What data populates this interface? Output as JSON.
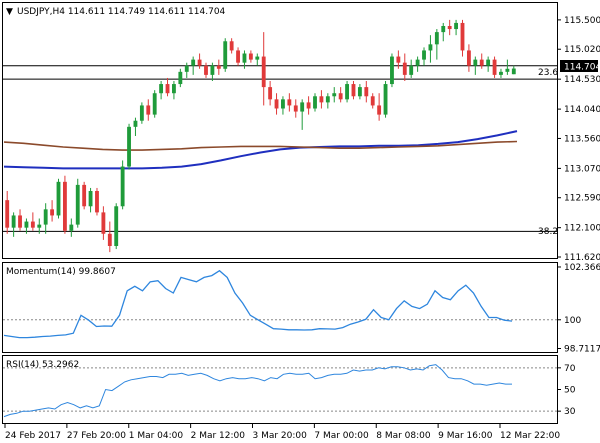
{
  "chart_data": [
    {
      "type": "candlestick",
      "title": "USDJPY,H4  114.611 114.749 114.611 114.704",
      "symbol": "USDJPY",
      "timeframe": "H4",
      "last_bar": {
        "open": 114.611,
        "high": 114.749,
        "low": 114.611,
        "close": 114.704
      },
      "current_price": 114.704,
      "y_ticks": [
        "115.500",
        "115.020",
        "114.530",
        "114.040",
        "113.560",
        "113.070",
        "112.590",
        "112.100",
        "111.620"
      ],
      "ylim": [
        111.62,
        115.76
      ],
      "up_color": "#1f9b3a",
      "down_color": "#e03a3a",
      "candles": [
        [
          112.55,
          112.7,
          112.0,
          112.1
        ],
        [
          112.1,
          112.35,
          111.95,
          112.3
        ],
        [
          112.3,
          112.4,
          112.05,
          112.1
        ],
        [
          112.1,
          112.25,
          112.0,
          112.2
        ],
        [
          112.2,
          112.35,
          112.05,
          112.1
        ],
        [
          112.1,
          112.25,
          112.0,
          112.15
        ],
        [
          112.15,
          112.5,
          112.0,
          112.4
        ],
        [
          112.4,
          112.55,
          112.2,
          112.3
        ],
        [
          112.3,
          112.9,
          112.25,
          112.85
        ],
        [
          112.85,
          112.95,
          112.0,
          112.05
        ],
        [
          112.05,
          112.25,
          111.95,
          112.15
        ],
        [
          112.15,
          112.9,
          112.1,
          112.8
        ],
        [
          112.8,
          112.85,
          112.4,
          112.45
        ],
        [
          112.45,
          112.75,
          112.35,
          112.7
        ],
        [
          112.7,
          112.75,
          112.3,
          112.35
        ],
        [
          112.35,
          112.45,
          111.9,
          112.0
        ],
        [
          112.0,
          112.2,
          111.7,
          111.8
        ],
        [
          111.8,
          112.5,
          111.75,
          112.45
        ],
        [
          112.45,
          113.2,
          112.4,
          113.1
        ],
        [
          113.1,
          113.8,
          113.05,
          113.75
        ],
        [
          113.75,
          113.9,
          113.6,
          113.85
        ],
        [
          113.85,
          114.15,
          113.8,
          114.1
        ],
        [
          114.1,
          114.2,
          113.85,
          113.95
        ],
        [
          113.95,
          114.35,
          113.9,
          114.3
        ],
        [
          114.3,
          114.5,
          114.2,
          114.45
        ],
        [
          114.45,
          114.55,
          114.25,
          114.3
        ],
        [
          114.3,
          114.5,
          114.2,
          114.45
        ],
        [
          114.45,
          114.7,
          114.4,
          114.65
        ],
        [
          114.65,
          114.8,
          114.55,
          114.75
        ],
        [
          114.75,
          114.9,
          114.6,
          114.85
        ],
        [
          114.85,
          114.95,
          114.7,
          114.75
        ],
        [
          114.75,
          114.8,
          114.55,
          114.6
        ],
        [
          114.6,
          114.8,
          114.5,
          114.75
        ],
        [
          114.75,
          114.85,
          114.6,
          114.7
        ],
        [
          114.7,
          115.2,
          114.65,
          115.15
        ],
        [
          115.15,
          115.2,
          114.95,
          115.0
        ],
        [
          115.0,
          115.05,
          114.75,
          114.8
        ],
        [
          114.8,
          115.0,
          114.7,
          114.95
        ],
        [
          114.95,
          115.0,
          114.8,
          114.85
        ],
        [
          114.85,
          114.95,
          114.75,
          114.9
        ],
        [
          114.9,
          115.3,
          114.1,
          114.4
        ],
        [
          114.4,
          114.5,
          114.1,
          114.2
        ],
        [
          114.2,
          114.3,
          113.95,
          114.05
        ],
        [
          114.05,
          114.25,
          113.95,
          114.2
        ],
        [
          114.2,
          114.3,
          114.0,
          114.1
        ],
        [
          114.1,
          114.2,
          113.9,
          114.0
        ],
        [
          114.0,
          114.2,
          113.7,
          114.15
        ],
        [
          114.15,
          114.25,
          113.95,
          114.05
        ],
        [
          114.05,
          114.3,
          114.0,
          114.25
        ],
        [
          114.25,
          114.35,
          114.05,
          114.15
        ],
        [
          114.15,
          114.3,
          114.05,
          114.25
        ],
        [
          114.25,
          114.4,
          114.15,
          114.3
        ],
        [
          114.3,
          114.4,
          114.15,
          114.2
        ],
        [
          114.2,
          114.5,
          114.15,
          114.45
        ],
        [
          114.45,
          114.5,
          114.2,
          114.25
        ],
        [
          114.25,
          114.45,
          114.2,
          114.4
        ],
        [
          114.4,
          114.5,
          114.15,
          114.25
        ],
        [
          114.25,
          114.3,
          114.05,
          114.1
        ],
        [
          114.1,
          114.3,
          113.85,
          113.95
        ],
        [
          113.95,
          114.5,
          113.9,
          114.45
        ],
        [
          114.45,
          114.95,
          114.4,
          114.9
        ],
        [
          114.9,
          115.0,
          114.7,
          114.8
        ],
        [
          114.8,
          114.95,
          114.5,
          114.6
        ],
        [
          114.6,
          114.85,
          114.55,
          114.75
        ],
        [
          114.75,
          114.9,
          114.65,
          114.85
        ],
        [
          114.85,
          115.05,
          114.75,
          115.0
        ],
        [
          115.0,
          115.25,
          114.8,
          115.1
        ],
        [
          115.1,
          115.35,
          114.85,
          115.3
        ],
        [
          115.3,
          115.45,
          115.15,
          115.4
        ],
        [
          115.4,
          115.5,
          115.25,
          115.35
        ],
        [
          115.35,
          115.5,
          115.25,
          115.45
        ],
        [
          115.45,
          115.5,
          114.9,
          115.0
        ],
        [
          115.0,
          115.1,
          114.65,
          114.75
        ],
        [
          114.75,
          114.9,
          114.6,
          114.85
        ],
        [
          114.85,
          114.95,
          114.7,
          114.75
        ],
        [
          114.75,
          114.9,
          114.65,
          114.85
        ],
        [
          114.85,
          114.9,
          114.55,
          114.6
        ],
        [
          114.6,
          114.7,
          114.55,
          114.65
        ],
        [
          114.65,
          114.85,
          114.6,
          114.7
        ],
        [
          114.611,
          114.749,
          114.611,
          114.704
        ]
      ],
      "moving_averages": [
        {
          "color": "#1f2fbf",
          "values": [
            113.1,
            113.09,
            113.08,
            113.07,
            113.07,
            113.07,
            113.07,
            113.07,
            113.08,
            113.1,
            113.14,
            113.2,
            113.27,
            113.33,
            113.38,
            113.41,
            113.42,
            113.43,
            113.43,
            113.44,
            113.44,
            113.45,
            113.47,
            113.5,
            113.55,
            113.61,
            113.68
          ]
        },
        {
          "color": "#8b4a2b",
          "values": [
            113.5,
            113.48,
            113.45,
            113.42,
            113.4,
            113.38,
            113.37,
            113.37,
            113.38,
            113.39,
            113.41,
            113.42,
            113.43,
            113.43,
            113.43,
            113.42,
            113.41,
            113.4,
            113.4,
            113.41,
            113.42,
            113.43,
            113.44,
            113.46,
            113.48,
            113.5,
            113.51
          ]
        }
      ],
      "fib_levels": [
        {
          "label": "23.6",
          "value": 114.53
        },
        {
          "label": "38.2",
          "value": 112.04
        }
      ],
      "ref_line": 114.75
    },
    {
      "type": "line",
      "title": "Momentum(14) 99.8607",
      "y_ticks": [
        "102.3666",
        "100",
        "98.7117"
      ],
      "ylim": [
        98.6,
        102.5
      ],
      "ref_line": 100,
      "line_color": "#2e86de",
      "values": [
        99.3,
        99.25,
        99.2,
        99.2,
        99.22,
        99.25,
        99.27,
        99.3,
        99.32,
        99.4,
        100.2,
        99.98,
        99.7,
        99.72,
        99.71,
        100.2,
        101.3,
        101.5,
        101.3,
        101.7,
        101.75,
        101.4,
        101.2,
        101.9,
        101.8,
        101.7,
        101.9,
        101.98,
        102.2,
        101.9,
        101.2,
        100.75,
        100.2,
        100.0,
        99.8,
        99.6,
        99.58,
        99.55,
        99.55,
        99.54,
        99.55,
        99.6,
        99.59,
        99.58,
        99.65,
        99.8,
        99.9,
        100.02,
        100.45,
        100.1,
        100.0,
        100.5,
        100.85,
        100.6,
        100.5,
        100.7,
        101.3,
        101.0,
        100.9,
        101.3,
        101.55,
        101.2,
        100.6,
        100.1,
        100.1,
        99.98,
        99.94
      ]
    },
    {
      "type": "line",
      "title": "RSI(14) 53.2962",
      "y_ticks": [
        "70",
        "50",
        "30"
      ],
      "ylim": [
        20,
        80
      ],
      "ref_lines": [
        70,
        30
      ],
      "line_color": "#2e86de",
      "values": [
        25,
        27,
        28,
        30,
        30,
        31,
        32,
        33,
        32,
        36,
        38,
        36,
        33,
        35,
        33,
        35,
        50,
        49,
        53,
        57,
        59,
        60,
        61,
        62,
        62,
        61,
        64,
        64,
        65,
        63,
        64,
        65,
        63,
        60,
        58,
        60,
        61,
        60,
        60,
        61,
        60,
        58,
        61,
        60,
        64,
        65,
        64,
        64,
        65,
        60,
        61,
        63,
        64,
        64,
        65,
        68,
        67,
        68,
        68,
        70,
        69,
        71,
        71,
        70,
        68,
        69,
        68,
        72,
        73,
        68,
        61,
        60,
        60,
        58,
        55,
        55,
        54,
        55,
        56,
        55,
        55
      ]
    }
  ],
  "x_axis": {
    "labels": [
      "24 Feb 2017",
      "27 Feb 20:00",
      "1 Mar 04:00",
      "2 Mar 12:00",
      "3 Mar 20:00",
      "7 Mar 00:00",
      "8 Mar 08:00",
      "9 Mar 16:00",
      "12 Mar 22:00"
    ]
  },
  "price_marker": "114.704",
  "fib_labels": {
    "upper": "23.6",
    "lower": "38.2"
  }
}
